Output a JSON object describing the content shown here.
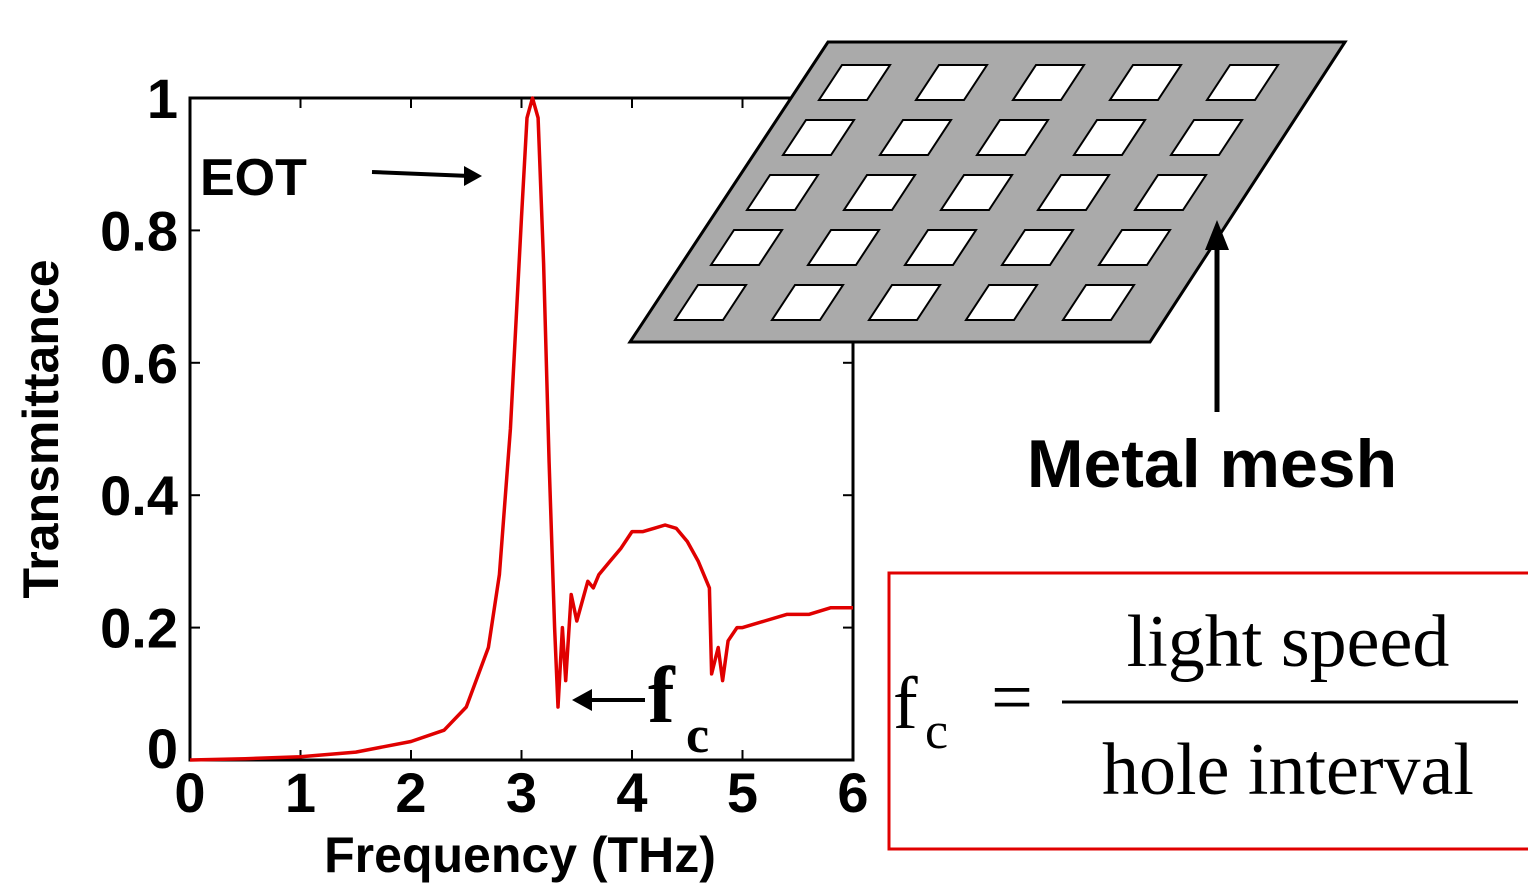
{
  "chart_data": {
    "type": "line",
    "x_label": "Frequency (THz)",
    "y_label": "Transmittance",
    "x": [
      0,
      0.5,
      1,
      1.5,
      2,
      2.3,
      2.5,
      2.7,
      2.8,
      2.9,
      3.0,
      3.05,
      3.1,
      3.15,
      3.2,
      3.25,
      3.3,
      3.33,
      3.37,
      3.4,
      3.45,
      3.5,
      3.55,
      3.6,
      3.65,
      3.7,
      3.8,
      3.9,
      4.0,
      4.1,
      4.2,
      4.3,
      4.4,
      4.5,
      4.6,
      4.7,
      4.72,
      4.78,
      4.82,
      4.87,
      4.95,
      5.0,
      5.2,
      5.4,
      5.6,
      5.8,
      6.0
    ],
    "series": [
      {
        "name": "Transmittance",
        "color": "#e00000",
        "values": [
          0,
          0.002,
          0.005,
          0.012,
          0.028,
          0.045,
          0.08,
          0.17,
          0.28,
          0.5,
          0.82,
          0.97,
          1.0,
          0.97,
          0.75,
          0.45,
          0.2,
          0.08,
          0.2,
          0.12,
          0.25,
          0.21,
          0.24,
          0.27,
          0.26,
          0.28,
          0.3,
          0.32,
          0.345,
          0.345,
          0.35,
          0.355,
          0.35,
          0.33,
          0.3,
          0.26,
          0.13,
          0.17,
          0.12,
          0.18,
          0.2,
          0.2,
          0.21,
          0.22,
          0.22,
          0.23,
          0.23
        ]
      }
    ],
    "xlim": [
      0,
      6
    ],
    "xticks": [
      0,
      1,
      2,
      3,
      4,
      5,
      6
    ],
    "ylim": [
      0,
      1
    ],
    "yticks": [
      0,
      0.2,
      0.4,
      0.6,
      0.8,
      1
    ],
    "annotations": {
      "eot": "EOT",
      "cutoff_main": "f",
      "cutoff_sub": "c",
      "mesh_label": "Metal mesh",
      "formula": {
        "lhs": "f",
        "lhs_sub": "c",
        "equals": "=",
        "numerator": "light speed",
        "denominator": "hole interval"
      }
    }
  }
}
